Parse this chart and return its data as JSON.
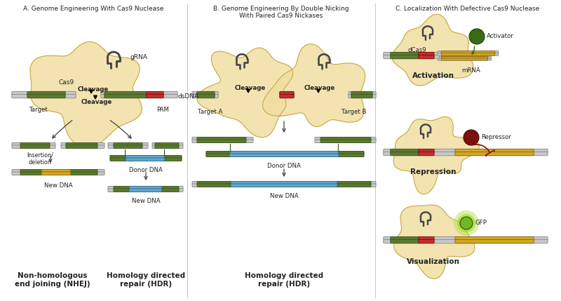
{
  "bg_color": "#ffffff",
  "panel_A_title": "A. Genome Engineering With Cas9 Nuclease",
  "panel_B_title": "B. Genome Engineering By Double Nicking\nWith Paired Cas9 Nickases",
  "panel_C_title": "C. Localization With Defective Cas9 Nuclease",
  "colors": {
    "cas9_body": "#f0dda0",
    "cas9_outline": "#b89820",
    "dna_silver": "#c8c8c8",
    "dna_silver_dark": "#909090",
    "dna_green": "#5a7a30",
    "dna_green_dark": "#3a5218",
    "dna_red": "#c03030",
    "dna_yellow": "#d4a820",
    "dna_blue": "#60a8cc",
    "arrow_dark": "#404040",
    "text_dark": "#222222",
    "activator_green": "#3a6a18",
    "repressor_red": "#7a1010",
    "gfp_green": "#70b820",
    "gfp_glow": "#b0e040",
    "divider": "#888888"
  },
  "nhej_label": "Non-homologous\nend joining (NHEJ)",
  "hdr_label_A": "Homology directed\nrepair (HDR)",
  "hdr_label_B": "Homology directed\nrepair (HDR)",
  "insertion_label": "Insertion/\ndeletion",
  "new_dna": "New DNA",
  "donor_dna": "Donor DNA",
  "target_label": "Target",
  "pam_label": "PAM",
  "dsdna_label": "dsDNA",
  "cleavage_label": "Cleavage",
  "target_a_label": "Target A",
  "target_b_label": "Target B",
  "cas9_label": "Cas9",
  "grna_label": "gRNA",
  "dcas9_label": "dCas9",
  "mrna_label": "mRNA",
  "activator_label": "Activator",
  "repressor_label": "Repressor",
  "gfp_label": "GFP",
  "activation_label": "Activation",
  "repression_label": "Repression",
  "visualization_label": "Visualization"
}
